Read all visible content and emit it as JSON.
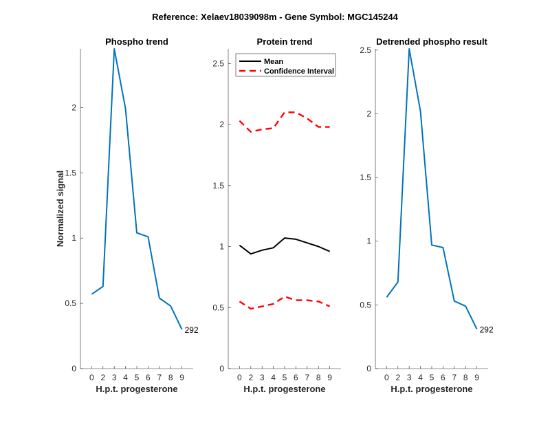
{
  "title": "Reference:  Xelaev18039098m - Gene Symbol:  MGC145244",
  "chart_data": [
    {
      "type": "line",
      "title": "Phospho trend",
      "xlabel": "H.p.t. progesterone",
      "ylabel": "Normalized signal",
      "x_tick_labels": [
        "0",
        "2",
        "3",
        "4",
        "5",
        "6",
        "7",
        "8",
        "9"
      ],
      "y_ticks": [
        0,
        0.5,
        1,
        1.5,
        2
      ],
      "y_tick_labels": [
        "0",
        "0.5",
        "1",
        "1.5",
        "2"
      ],
      "xlim": [
        0,
        10
      ],
      "ylim": [
        0,
        2.45
      ],
      "grid": false,
      "series": [
        {
          "name": "Phospho",
          "color": "#0072BD",
          "style": "solid",
          "values": [
            0.57,
            0.63,
            2.45,
            1.99,
            1.04,
            1.01,
            0.54,
            0.48,
            0.3
          ]
        }
      ],
      "end_label": "292"
    },
    {
      "type": "line",
      "title": "Protein trend",
      "xlabel": "H.p.t. progesterone",
      "ylabel": "",
      "x_tick_labels": [
        "0",
        "2",
        "3",
        "4",
        "5",
        "6",
        "7",
        "8",
        "9"
      ],
      "y_ticks": [
        0,
        0.5,
        1,
        1.5,
        2,
        2.5
      ],
      "y_tick_labels": [
        "0",
        "0.5",
        "1",
        "1.5",
        "2",
        "2.5"
      ],
      "xlim": [
        0,
        10
      ],
      "ylim": [
        0,
        2.62
      ],
      "grid": false,
      "legend": {
        "position": "top-left",
        "entries": [
          "Mean",
          "Confidence Interval"
        ]
      },
      "series": [
        {
          "name": "Mean",
          "color": "#000000",
          "style": "solid",
          "values": [
            1.01,
            0.94,
            0.97,
            0.99,
            1.07,
            1.06,
            1.03,
            1.0,
            0.96
          ]
        },
        {
          "name": "Confidence Interval (upper)",
          "color": "#FF0000",
          "style": "dashed",
          "values": [
            2.03,
            1.94,
            1.96,
            1.97,
            2.1,
            2.1,
            2.05,
            1.98,
            1.98
          ]
        },
        {
          "name": "Confidence Interval (lower)",
          "color": "#FF0000",
          "style": "dashed",
          "values": [
            0.55,
            0.49,
            0.51,
            0.53,
            0.59,
            0.56,
            0.56,
            0.55,
            0.51
          ]
        }
      ]
    },
    {
      "type": "line",
      "title": "Detrended phospho result",
      "xlabel": "H.p.t. progesterone",
      "ylabel": "",
      "x_tick_labels": [
        "0",
        "2",
        "3",
        "4",
        "5",
        "6",
        "7",
        "8",
        "9"
      ],
      "y_ticks": [
        0,
        0.5,
        1,
        1.5,
        2,
        2.5
      ],
      "y_tick_labels": [
        "0",
        "0.5",
        "1",
        "1.5",
        "2",
        "2.5"
      ],
      "xlim": [
        0,
        10
      ],
      "ylim": [
        0,
        2.51
      ],
      "grid": false,
      "series": [
        {
          "name": "Detrended",
          "color": "#0072BD",
          "style": "solid",
          "values": [
            0.56,
            0.68,
            2.51,
            2.02,
            0.97,
            0.95,
            0.53,
            0.49,
            0.31
          ]
        }
      ],
      "end_label": "292"
    }
  ]
}
